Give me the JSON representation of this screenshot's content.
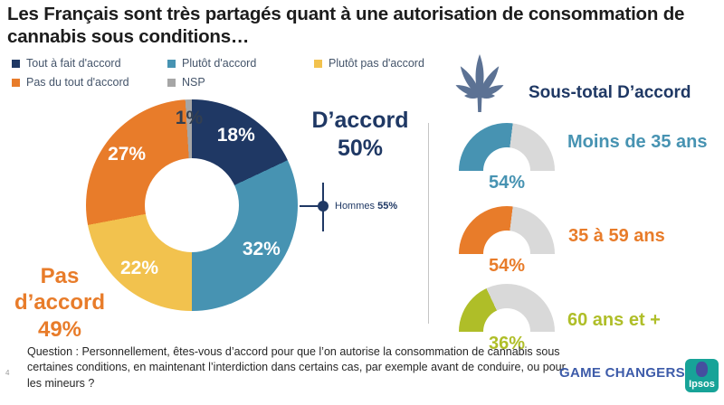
{
  "slide": {
    "title": "Les Français sont très partagés quant à une autorisation de consommation de cannabis sous conditions…",
    "page_number": "4",
    "question": "Question : Personnellement, êtes-vous d’accord pour que l’on autorise la consommation de cannabis sous certaines conditions, en maintenant l’interdiction dans certains cas, par exemple avant de conduire, ou pour les mineurs ?",
    "brand": "GAME CHANGERS",
    "logo_text": "Ipsos"
  },
  "legend": {
    "position": "top-left",
    "items": [
      {
        "label": "Tout à fait d'accord",
        "color": "#1F3864"
      },
      {
        "label": "Plutôt d'accord",
        "color": "#4793B2"
      },
      {
        "label": "Plutôt pas d'accord",
        "color": "#F2C24E"
      },
      {
        "label": "Pas du tout d'accord",
        "color": "#E87C2A"
      },
      {
        "label": "NSP",
        "color": "#A6A6A6"
      }
    ]
  },
  "chart_data": [
    {
      "type": "pie",
      "subtype": "donut",
      "title": "",
      "start_angle_deg": 0,
      "direction": "clockwise",
      "slices": [
        {
          "label": "Tout à fait d'accord",
          "value": 18,
          "text": "18%",
          "color": "#1F3864",
          "text_color": "#FFFFFF"
        },
        {
          "label": "Plutôt d'accord",
          "value": 32,
          "text": "32%",
          "color": "#4793B2",
          "text_color": "#FFFFFF"
        },
        {
          "label": "Plutôt pas d'accord",
          "value": 22,
          "text": "22%",
          "color": "#F2C24E",
          "text_color": "#FFFFFF"
        },
        {
          "label": "Pas du tout d'accord",
          "value": 27,
          "text": "27%",
          "color": "#E87C2A",
          "text_color": "#FFFFFF"
        },
        {
          "label": "NSP",
          "value": 1,
          "text": "1%",
          "color": "#A6A6A6",
          "text_color": "#333F50"
        }
      ],
      "callouts": {
        "agree": {
          "label": "D’accord",
          "value": "50%",
          "color": "#1F3864"
        },
        "disagree": {
          "label": "Pas d’accord",
          "value": "49%",
          "color": "#E87C2A"
        },
        "annotation": {
          "label": "Hommes",
          "value": "55%",
          "color": "#1F3864"
        }
      }
    },
    {
      "type": "pie",
      "subtype": "semicircle-gauges",
      "group_title": "Sous-total D’accord",
      "track_color": "#D9D9D9",
      "items": [
        {
          "label": "Moins de 35 ans",
          "value": 54,
          "display": "54%",
          "color": "#4793B2"
        },
        {
          "label": "35 à 59 ans",
          "value": 54,
          "display": "54%",
          "color": "#E87C2A"
        },
        {
          "label": "60 ans et +",
          "value": 36,
          "display": "36%",
          "color": "#AFBE28"
        }
      ]
    }
  ]
}
